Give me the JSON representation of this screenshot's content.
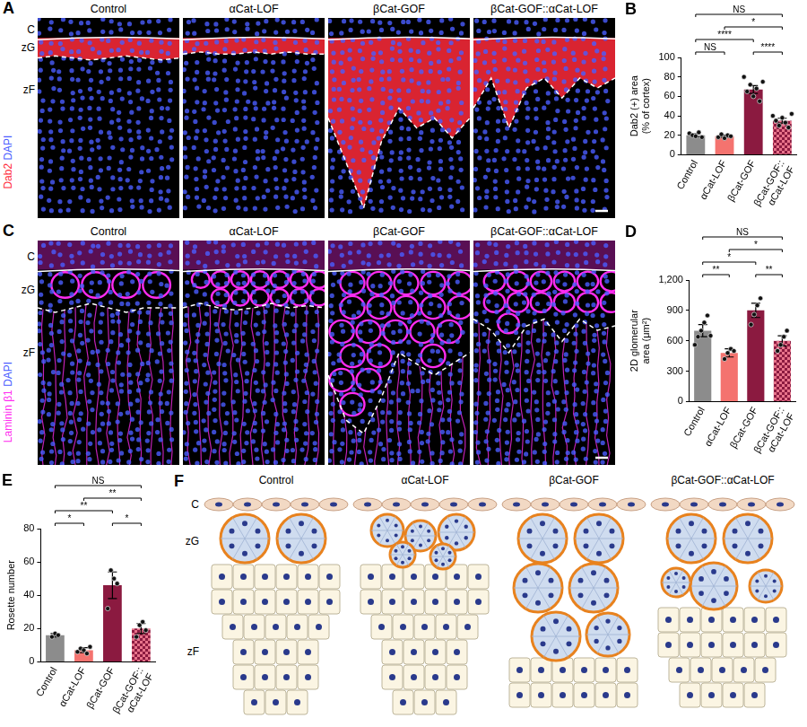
{
  "image_panels": [
    {
      "letter": "A",
      "stains": [
        {
          "text": "Dab2",
          "color": "#ff2a3a"
        },
        {
          "text": "DAPI",
          "color": "#4a5cff"
        }
      ],
      "zones": [
        "C",
        "zG",
        "zF"
      ],
      "columns": [
        "Control",
        "αCat-LOF",
        "βCat-GOF",
        "βCat-GOF::αCat-LOF"
      ]
    },
    {
      "letter": "C",
      "stains": [
        {
          "text": "Laminin β1",
          "color": "#ff2cf0"
        },
        {
          "text": "DAPI",
          "color": "#4a5cff"
        }
      ],
      "zones": [
        "C",
        "zG",
        "zF"
      ],
      "columns": [
        "Control",
        "αCat-LOF",
        "βCat-GOF",
        "βCat-GOF::αCat-LOF"
      ]
    }
  ],
  "schematic": {
    "letter": "F",
    "zones": [
      "C",
      "zG",
      "zF"
    ],
    "columns": [
      "Control",
      "αCat-LOF",
      "βCat-GOF",
      "βCat-GOF::αCat-LOF"
    ]
  },
  "chart_data": [
    {
      "letter": "B",
      "type": "bar",
      "y_label": "Dab2 (+) area (% of cortex)",
      "categories": [
        "Control",
        "αCat-LOF",
        "βCat-GOF",
        "βCat-GOF::αCat-LOF"
      ],
      "values": [
        20,
        19,
        67,
        35
      ],
      "errors": [
        1.5,
        1,
        4,
        2.5
      ],
      "points": [
        [
          22,
          20,
          19,
          23,
          18
        ],
        [
          18,
          21,
          17,
          20,
          19
        ],
        [
          80,
          65,
          72,
          60,
          68,
          55,
          75
        ],
        [
          40,
          35,
          30,
          38,
          33,
          28,
          42
        ]
      ],
      "colors": [
        "#8c8c8c",
        "#f4736f",
        "#8b1a40",
        "#e8738a"
      ],
      "ylim": [
        0,
        100
      ],
      "yticks": [
        0,
        20,
        40,
        60,
        80,
        100
      ],
      "grid": false,
      "comparisons": [
        {
          "pair": [
            0,
            1
          ],
          "label": "NS"
        },
        {
          "pair": [
            2,
            3
          ],
          "label": "****"
        },
        {
          "pair": [
            0,
            2
          ],
          "label": "****"
        },
        {
          "pair": [
            1,
            3
          ],
          "label": "*"
        },
        {
          "pair": [
            0,
            3
          ],
          "label": "NS"
        }
      ]
    },
    {
      "letter": "D",
      "type": "bar",
      "y_label": "2D glomerular area (μm²)",
      "categories": [
        "Control",
        "αCat-LOF",
        "βCat-GOF",
        "βCat-GOF::αCat-LOF"
      ],
      "values": [
        700,
        480,
        900,
        600
      ],
      "errors": [
        60,
        40,
        70,
        50
      ],
      "points": [
        [
          560,
          640,
          700,
          780,
          850,
          650
        ],
        [
          420,
          480,
          520,
          500
        ],
        [
          760,
          860,
          950,
          1020
        ],
        [
          500,
          560,
          640,
          700
        ]
      ],
      "colors": [
        "#8c8c8c",
        "#f4736f",
        "#8b1a40",
        "#e8738a"
      ],
      "ylim": [
        0,
        1200
      ],
      "yticks": [
        0,
        300,
        600,
        900,
        1200
      ],
      "grid": false,
      "comparisons": [
        {
          "pair": [
            0,
            1
          ],
          "label": "**"
        },
        {
          "pair": [
            2,
            3
          ],
          "label": "**"
        },
        {
          "pair": [
            0,
            2
          ],
          "label": "*"
        },
        {
          "pair": [
            1,
            3
          ],
          "label": "*"
        },
        {
          "pair": [
            0,
            3
          ],
          "label": "NS"
        }
      ]
    },
    {
      "letter": "E",
      "type": "bar",
      "y_label": "Rosette number",
      "categories": [
        "Control",
        "αCat-LOF",
        "βCat-GOF",
        "βCat-GOF::αCat-LOF"
      ],
      "values": [
        16,
        7,
        46,
        20
      ],
      "errors": [
        1,
        1.5,
        8,
        3
      ],
      "points": [
        [
          15,
          17,
          16
        ],
        [
          6,
          8,
          7,
          5,
          9
        ],
        [
          32,
          55,
          50,
          47
        ],
        [
          15,
          22,
          24,
          19
        ]
      ],
      "colors": [
        "#8c8c8c",
        "#f4736f",
        "#8b1a40",
        "#e8738a"
      ],
      "ylim": [
        0,
        80
      ],
      "yticks": [
        0,
        20,
        40,
        60,
        80
      ],
      "grid": false,
      "comparisons": [
        {
          "pair": [
            0,
            1
          ],
          "label": "*"
        },
        {
          "pair": [
            2,
            3
          ],
          "label": "*"
        },
        {
          "pair": [
            0,
            2
          ],
          "label": "**"
        },
        {
          "pair": [
            1,
            3
          ],
          "label": "**"
        },
        {
          "pair": [
            0,
            3
          ],
          "label": "NS"
        }
      ]
    }
  ]
}
